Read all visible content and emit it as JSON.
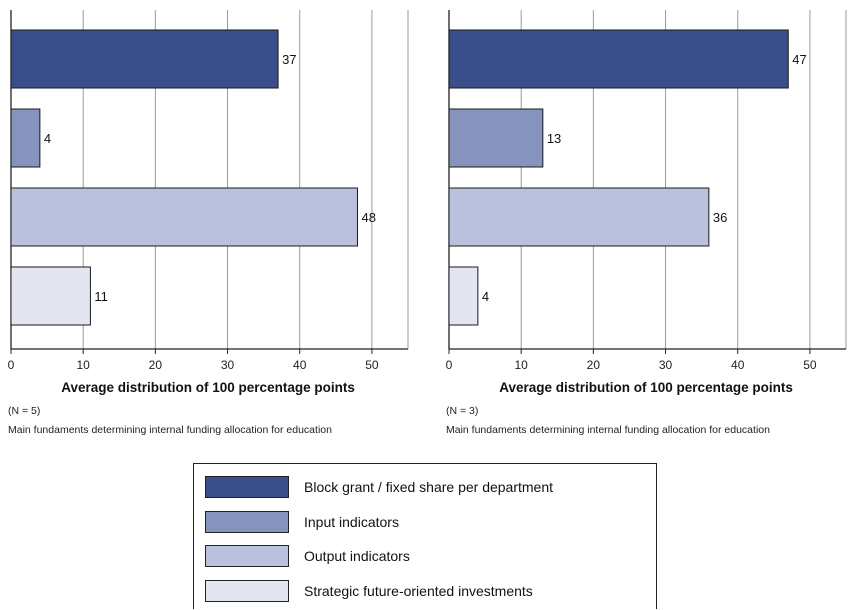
{
  "chart_data": [
    {
      "type": "bar",
      "orientation": "horizontal",
      "categories": [
        "Block grant / fixed share per department",
        "Input indicators",
        "Output indicators",
        "Strategic future-oriented investments"
      ],
      "values": [
        37,
        4,
        48,
        11
      ],
      "colors": [
        "#3a4e8c",
        "#8693bd",
        "#bac1dc",
        "#e3e6f0"
      ],
      "xlabel": "Average distribution of 100 percentage points",
      "xticks": [
        0,
        10,
        20,
        30,
        40,
        50
      ],
      "xlim": [
        0,
        55
      ],
      "grid": "vertical",
      "note_n": "(N = 5)",
      "note_caption": "Main fundaments determining internal funding allocation for education"
    },
    {
      "type": "bar",
      "orientation": "horizontal",
      "categories": [
        "Block grant / fixed share per department",
        "Input indicators",
        "Output indicators",
        "Strategic future-oriented investments"
      ],
      "values": [
        47,
        13,
        36,
        4
      ],
      "colors": [
        "#3a4e8c",
        "#8693bd",
        "#bac1dc",
        "#e3e6f0"
      ],
      "xlabel": "Average distribution of 100 percentage points",
      "xticks": [
        0,
        10,
        20,
        30,
        40,
        50
      ],
      "xlim": [
        0,
        55
      ],
      "grid": "vertical",
      "note_n": "(N = 3)",
      "note_caption": "Main fundaments determining internal funding allocation for education"
    }
  ],
  "legend": {
    "items": [
      {
        "label": "Block grant / fixed share per department",
        "color": "#3a4e8c"
      },
      {
        "label": "Input indicators",
        "color": "#8693bd"
      },
      {
        "label": "Output indicators",
        "color": "#bac1dc"
      },
      {
        "label": "Strategic future-oriented investments",
        "color": "#e3e6f0"
      }
    ]
  }
}
